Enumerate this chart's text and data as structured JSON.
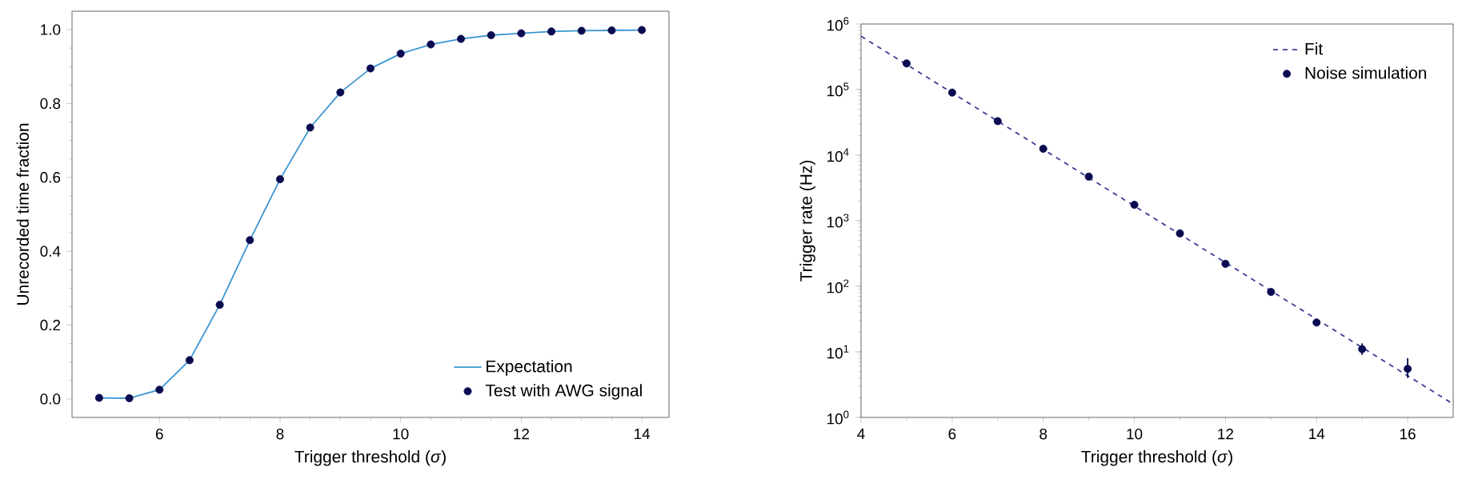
{
  "chart_data": [
    {
      "type": "line",
      "xlabel": "Trigger threshold (*σ*)",
      "ylabel": "Unrecorded time fraction",
      "x": [
        5,
        5.5,
        6,
        6.5,
        7,
        7.5,
        8,
        8.5,
        9,
        9.5,
        10,
        10.5,
        11,
        11.5,
        12,
        12.5,
        13,
        13.5,
        14
      ],
      "series": [
        {
          "name": "Expectation",
          "color": "#3c96d2",
          "line_style": "solid",
          "marker": "none",
          "values": [
            0.003,
            0.002,
            0.025,
            0.105,
            0.255,
            0.43,
            0.595,
            0.735,
            0.83,
            0.895,
            0.935,
            0.96,
            0.975,
            0.985,
            0.99,
            0.995,
            0.997,
            0.998,
            0.999
          ]
        },
        {
          "name": "Test with AWG signal",
          "type": "scatter",
          "color": "#0a0a50",
          "marker": "circle",
          "values": [
            0.003,
            0.002,
            0.025,
            0.105,
            0.255,
            0.43,
            0.595,
            0.735,
            0.83,
            0.895,
            0.935,
            0.96,
            0.975,
            0.985,
            0.99,
            0.995,
            0.997,
            0.998,
            0.999
          ]
        }
      ],
      "xlim": [
        4.55,
        14.45
      ],
      "ylim": [
        -0.05,
        1.05
      ],
      "xticks": [
        6,
        8,
        10,
        12,
        14
      ],
      "yticks": [
        {
          "value": 0,
          "label": "0.0"
        },
        {
          "value": 0.2,
          "label": "0.2"
        },
        {
          "value": 0.4,
          "label": "0.4"
        },
        {
          "value": 0.6,
          "label": "0.6"
        },
        {
          "value": 0.8,
          "label": "0.8"
        },
        {
          "value": 1,
          "label": "1.0"
        }
      ],
      "legend": "bottom right"
    },
    {
      "type": "scatter",
      "xlabel": "Trigger threshold (*σ*)",
      "ylabel": "Trigger rate (Hz)",
      "log": "y",
      "series": [
        {
          "name": "Fit",
          "type": "line",
          "color": "#3c3c96",
          "line_style": "dashed",
          "marker": "none",
          "x": [
            4,
            17
          ],
          "values": [
            650000,
            1.6
          ]
        },
        {
          "name": "Noise simulation",
          "color": "#0a0a50",
          "marker": "circle",
          "x": [
            5,
            6,
            7,
            8,
            9,
            10,
            11,
            12,
            13,
            14,
            15,
            16
          ],
          "values": [
            250000,
            90000,
            33000,
            12500,
            4700,
            1750,
            640,
            220,
            82,
            28,
            11,
            5.5
          ],
          "errors": [
            null,
            null,
            null,
            null,
            null,
            null,
            null,
            null,
            null,
            null,
            [
              9,
              13.5
            ],
            [
              4,
              8
            ]
          ]
        }
      ],
      "xlim": [
        4,
        17
      ],
      "ylim": [
        1,
        1000000
      ],
      "xticks": [
        4,
        6,
        8,
        10,
        12,
        14,
        16
      ],
      "yticks": [
        {
          "value": 1,
          "label": "10$^{0}$"
        },
        {
          "value": 10,
          "label": "10$^{1}$"
        },
        {
          "value": 100,
          "label": "10$^{2}$"
        },
        {
          "value": 1000,
          "label": "10$^{3}$"
        },
        {
          "value": 10000,
          "label": "10$^{4}$"
        },
        {
          "value": 100000,
          "label": "10$^{5}$"
        },
        {
          "value": 1000000,
          "label": "10$^{6}$"
        }
      ],
      "legend": "top right"
    }
  ]
}
